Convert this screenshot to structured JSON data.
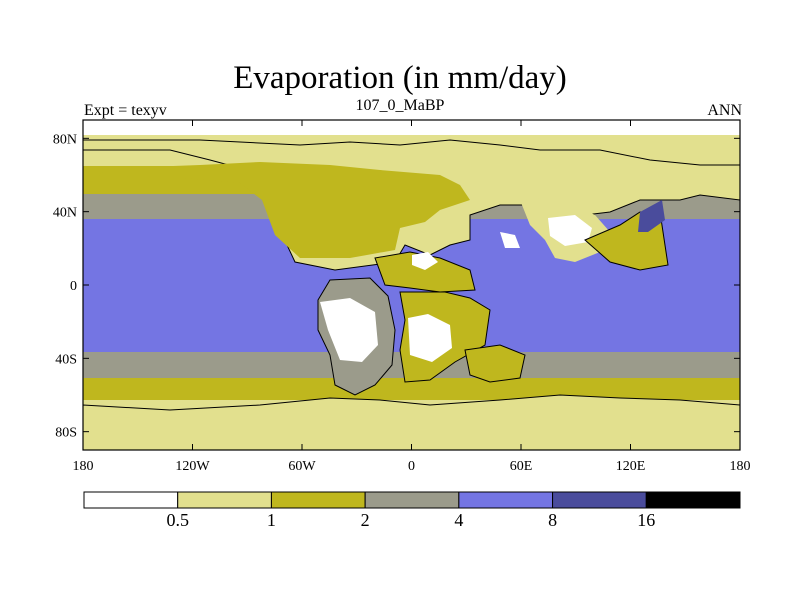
{
  "chart_data": {
    "type": "heatmap",
    "title": "Evaporation (in mm/day)",
    "subtitle": "107_0_MaBP",
    "left_label": "Expt = texyv",
    "right_label": "ANN",
    "x_ticks": [
      "180",
      "120W",
      "60W",
      "0",
      "60E",
      "120E",
      "180"
    ],
    "y_ticks": [
      "80N",
      "40N",
      "0",
      "40S",
      "80S"
    ],
    "xlim": [
      -180,
      180
    ],
    "ylim": [
      -90,
      90
    ],
    "colorbar": {
      "levels": [
        "0.5",
        "1",
        "2",
        "4",
        "8",
        "16"
      ],
      "colors": [
        "#ffffff",
        "#e2e08e",
        "#bfb71e",
        "#9b9b8b",
        "#7475e3",
        "#4a4c9c",
        "#000000"
      ]
    },
    "bands": [
      {
        "lat_top": 90,
        "lat_bottom": 82,
        "bin": "0-0.5"
      },
      {
        "lat_top": 82,
        "lat_bottom": 65,
        "bin": "0.5-1"
      },
      {
        "lat_top": 65,
        "lat_bottom": 50,
        "bin": "1-2"
      },
      {
        "lat_top": 50,
        "lat_bottom": 35,
        "bin": "2-4"
      },
      {
        "lat_top": 35,
        "lat_bottom": -35,
        "bin": "4-8"
      },
      {
        "lat_top": -35,
        "lat_bottom": -50,
        "bin": "2-4"
      },
      {
        "lat_top": -50,
        "lat_bottom": -62,
        "bin": "1-2"
      },
      {
        "lat_top": -62,
        "lat_bottom": -90,
        "bin": "0.5-1"
      }
    ],
    "max_region": {
      "lon": 135,
      "lat": 38,
      "bin": "8-16"
    }
  }
}
